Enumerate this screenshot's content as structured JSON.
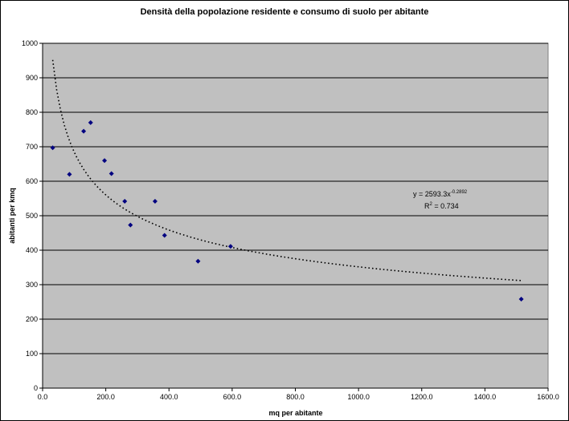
{
  "chart_data": {
    "type": "scatter",
    "title": "Densità della popolazione residente e consumo di suolo per abitante",
    "xlabel": "mq per abitante",
    "ylabel": "abitanti per kmq",
    "xlim": [
      0,
      1600
    ],
    "ylim": [
      0,
      1000
    ],
    "xticks": [
      0,
      200,
      400,
      600,
      800,
      1000,
      1200,
      1400,
      1600
    ],
    "yticks": [
      0,
      100,
      200,
      300,
      400,
      500,
      600,
      700,
      800,
      900,
      1000
    ],
    "xtick_labels": [
      "0.0",
      "200.0",
      "400.0",
      "600.0",
      "800.0",
      "1000.0",
      "1200.0",
      "1400.0",
      "1600.0"
    ],
    "ytick_labels": [
      "0",
      "100",
      "200",
      "300",
      "400",
      "500",
      "600",
      "700",
      "800",
      "900",
      "1000"
    ],
    "grid": "horizontal",
    "plot_background": "#c0c0c0",
    "marker_color": "#000080",
    "points": [
      {
        "x": 32,
        "y": 697
      },
      {
        "x": 85,
        "y": 620
      },
      {
        "x": 130,
        "y": 745
      },
      {
        "x": 152,
        "y": 770
      },
      {
        "x": 196,
        "y": 660
      },
      {
        "x": 218,
        "y": 622
      },
      {
        "x": 260,
        "y": 542
      },
      {
        "x": 278,
        "y": 473
      },
      {
        "x": 356,
        "y": 542
      },
      {
        "x": 386,
        "y": 443
      },
      {
        "x": 492,
        "y": 368
      },
      {
        "x": 595,
        "y": 411
      },
      {
        "x": 1515,
        "y": 258
      }
    ],
    "trendline": {
      "type": "power",
      "a": 2593.3,
      "b": -0.2892,
      "x_range": [
        32,
        1515
      ],
      "style": "dotted",
      "equation_base": "y = 2593.3x",
      "equation_exp": "-0.2892",
      "r2_prefix": "R",
      "r2_exp": "2",
      "r2_suffix": " = 0.734"
    }
  }
}
